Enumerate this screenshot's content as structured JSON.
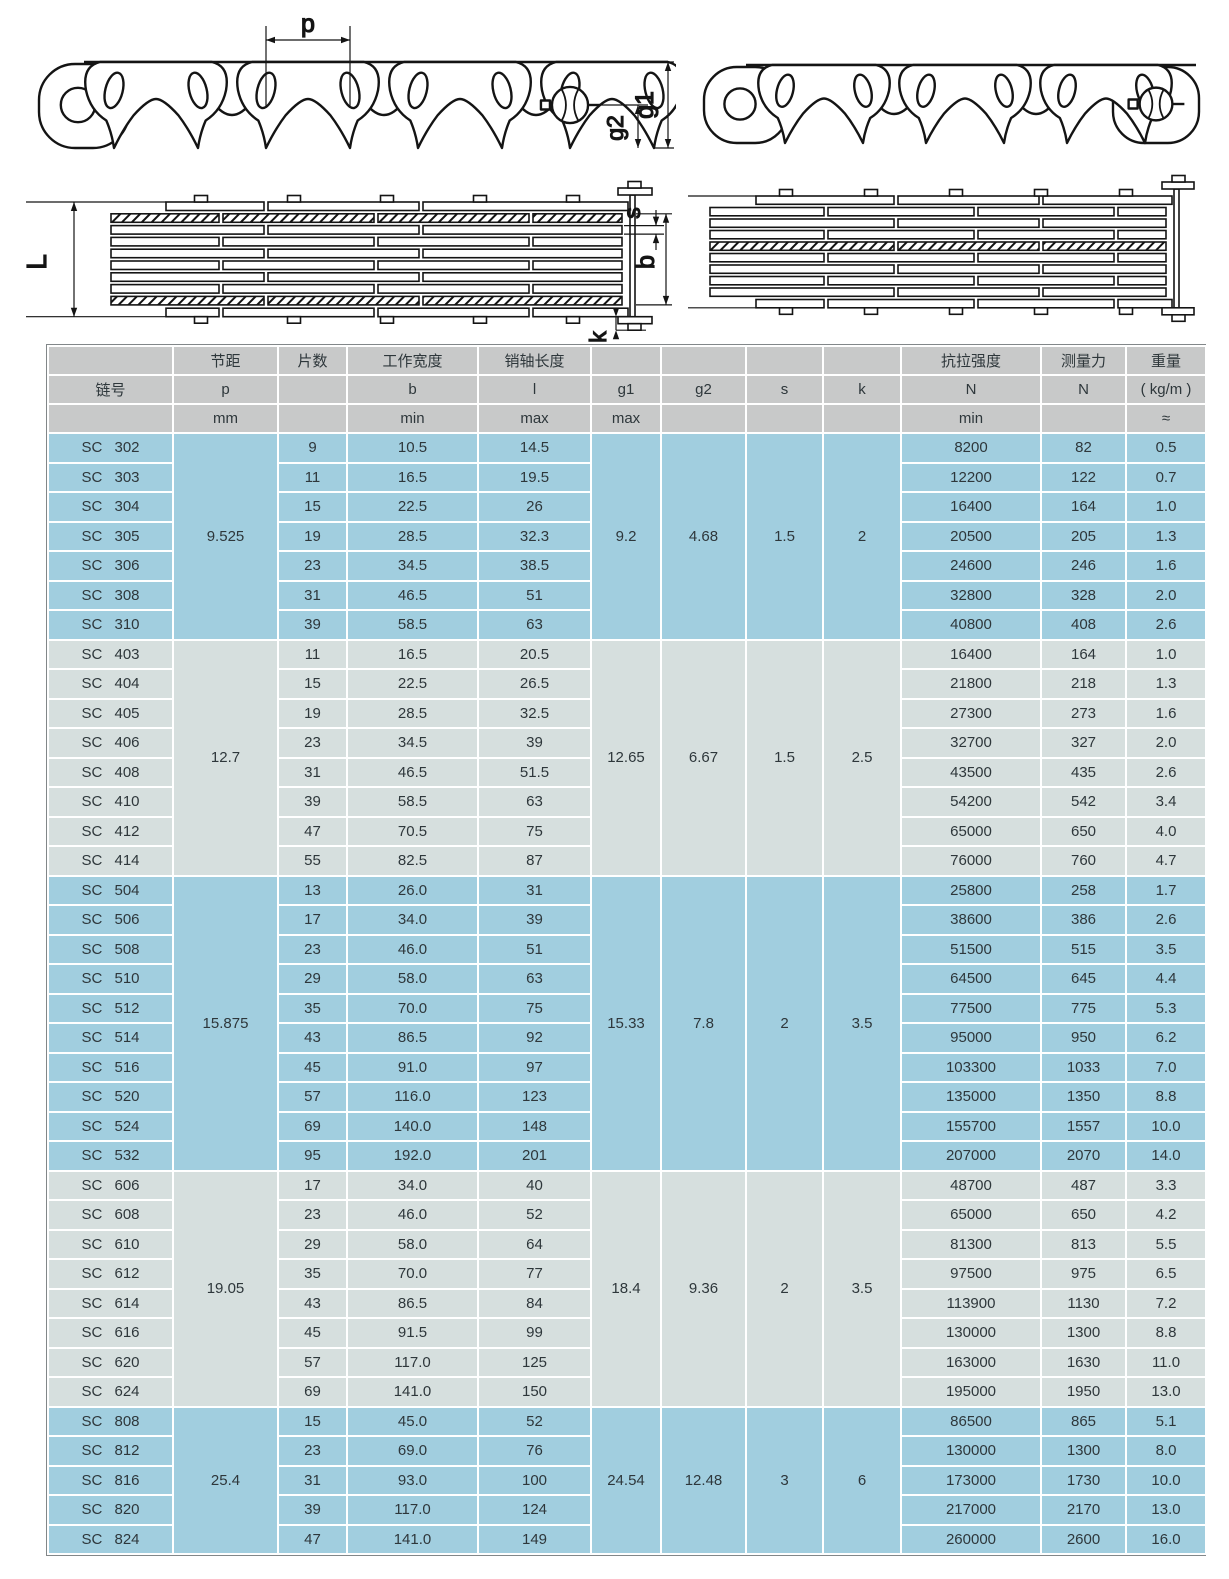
{
  "diagram": {
    "labels": {
      "pitch": "p",
      "g1": "g1",
      "g2": "g2",
      "L": "L",
      "s": "s",
      "b": "b",
      "k": "k"
    }
  },
  "table": {
    "columns": [
      {
        "key": "chain_no",
        "row1": "",
        "row2": "链号",
        "row3": ""
      },
      {
        "key": "pitch",
        "row1": "节距",
        "row2": "p",
        "row3": "mm"
      },
      {
        "key": "plates",
        "row1": "片数",
        "row2": "",
        "row3": ""
      },
      {
        "key": "work_width",
        "row1": "工作宽度",
        "row2": "b",
        "row3": "min"
      },
      {
        "key": "pin_length",
        "row1": "销轴长度",
        "row2": "l",
        "row3": "max"
      },
      {
        "key": "g1",
        "row1": "",
        "row2": "g1",
        "row3": "max"
      },
      {
        "key": "g2",
        "row1": "",
        "row2": "g2",
        "row3": ""
      },
      {
        "key": "s",
        "row1": "",
        "row2": "s",
        "row3": ""
      },
      {
        "key": "k",
        "row1": "",
        "row2": "k",
        "row3": ""
      },
      {
        "key": "tensile",
        "row1": "抗拉强度",
        "row2": "N",
        "row3": "min"
      },
      {
        "key": "measuring_force",
        "row1": "测量力",
        "row2": "N",
        "row3": ""
      },
      {
        "key": "weight",
        "row1": "重量",
        "row2": "( kg/m )",
        "row3": "≈"
      }
    ],
    "groups": [
      {
        "shade": "blue",
        "p": "9.525",
        "g1": "9.2",
        "g2": "4.68",
        "s": "1.5",
        "k": "2",
        "rows": [
          [
            "SC 302",
            "9",
            "10.5",
            "14.5",
            "8200",
            "82",
            "0.5"
          ],
          [
            "SC 303",
            "11",
            "16.5",
            "19.5",
            "12200",
            "122",
            "0.7"
          ],
          [
            "SC 304",
            "15",
            "22.5",
            "26",
            "16400",
            "164",
            "1.0"
          ],
          [
            "SC 305",
            "19",
            "28.5",
            "32.3",
            "20500",
            "205",
            "1.3"
          ],
          [
            "SC 306",
            "23",
            "34.5",
            "38.5",
            "24600",
            "246",
            "1.6"
          ],
          [
            "SC 308",
            "31",
            "46.5",
            "51",
            "32800",
            "328",
            "2.0"
          ],
          [
            "SC 310",
            "39",
            "58.5",
            "63",
            "40800",
            "408",
            "2.6"
          ]
        ]
      },
      {
        "shade": "gray",
        "p": "12.7",
        "g1": "12.65",
        "g2": "6.67",
        "s": "1.5",
        "k": "2.5",
        "rows": [
          [
            "SC 403",
            "11",
            "16.5",
            "20.5",
            "16400",
            "164",
            "1.0"
          ],
          [
            "SC 404",
            "15",
            "22.5",
            "26.5",
            "21800",
            "218",
            "1.3"
          ],
          [
            "SC 405",
            "19",
            "28.5",
            "32.5",
            "27300",
            "273",
            "1.6"
          ],
          [
            "SC 406",
            "23",
            "34.5",
            "39",
            "32700",
            "327",
            "2.0"
          ],
          [
            "SC 408",
            "31",
            "46.5",
            "51.5",
            "43500",
            "435",
            "2.6"
          ],
          [
            "SC 410",
            "39",
            "58.5",
            "63",
            "54200",
            "542",
            "3.4"
          ],
          [
            "SC 412",
            "47",
            "70.5",
            "75",
            "65000",
            "650",
            "4.0"
          ],
          [
            "SC 414",
            "55",
            "82.5",
            "87",
            "76000",
            "760",
            "4.7"
          ]
        ]
      },
      {
        "shade": "blue",
        "p": "15.875",
        "g1": "15.33",
        "g2": "7.8",
        "s": "2",
        "k": "3.5",
        "rows": [
          [
            "SC 504",
            "13",
            "26.0",
            "31",
            "25800",
            "258",
            "1.7"
          ],
          [
            "SC 506",
            "17",
            "34.0",
            "39",
            "38600",
            "386",
            "2.6"
          ],
          [
            "SC 508",
            "23",
            "46.0",
            "51",
            "51500",
            "515",
            "3.5"
          ],
          [
            "SC 510",
            "29",
            "58.0",
            "63",
            "64500",
            "645",
            "4.4"
          ],
          [
            "SC 512",
            "35",
            "70.0",
            "75",
            "77500",
            "775",
            "5.3"
          ],
          [
            "SC 514",
            "43",
            "86.5",
            "92",
            "95000",
            "950",
            "6.2"
          ],
          [
            "SC 516",
            "45",
            "91.0",
            "97",
            "103300",
            "1033",
            "7.0"
          ],
          [
            "SC 520",
            "57",
            "116.0",
            "123",
            "135000",
            "1350",
            "8.8"
          ],
          [
            "SC 524",
            "69",
            "140.0",
            "148",
            "155700",
            "1557",
            "10.0"
          ],
          [
            "SC 532",
            "95",
            "192.0",
            "201",
            "207000",
            "2070",
            "14.0"
          ]
        ]
      },
      {
        "shade": "gray",
        "p": "19.05",
        "g1": "18.4",
        "g2": "9.36",
        "s": "2",
        "k": "3.5",
        "rows": [
          [
            "SC 606",
            "17",
            "34.0",
            "40",
            "48700",
            "487",
            "3.3"
          ],
          [
            "SC 608",
            "23",
            "46.0",
            "52",
            "65000",
            "650",
            "4.2"
          ],
          [
            "SC 610",
            "29",
            "58.0",
            "64",
            "81300",
            "813",
            "5.5"
          ],
          [
            "SC 612",
            "35",
            "70.0",
            "77",
            "97500",
            "975",
            "6.5"
          ],
          [
            "SC 614",
            "43",
            "86.5",
            "84",
            "113900",
            "1130",
            "7.2"
          ],
          [
            "SC 616",
            "45",
            "91.5",
            "99",
            "130000",
            "1300",
            "8.8"
          ],
          [
            "SC 620",
            "57",
            "117.0",
            "125",
            "163000",
            "1630",
            "11.0"
          ],
          [
            "SC 624",
            "69",
            "141.0",
            "150",
            "195000",
            "1950",
            "13.0"
          ]
        ]
      },
      {
        "shade": "blue",
        "p": "25.4",
        "g1": "24.54",
        "g2": "12.48",
        "s": "3",
        "k": "6",
        "rows": [
          [
            "SC 808",
            "15",
            "45.0",
            "52",
            "86500",
            "865",
            "5.1"
          ],
          [
            "SC 812",
            "23",
            "69.0",
            "76",
            "130000",
            "1300",
            "8.0"
          ],
          [
            "SC 816",
            "31",
            "93.0",
            "100",
            "173000",
            "1730",
            "10.0"
          ],
          [
            "SC 820",
            "39",
            "117.0",
            "124",
            "217000",
            "2170",
            "13.0"
          ],
          [
            "SC 824",
            "47",
            "141.0",
            "149",
            "260000",
            "2600",
            "16.0"
          ]
        ]
      }
    ]
  }
}
